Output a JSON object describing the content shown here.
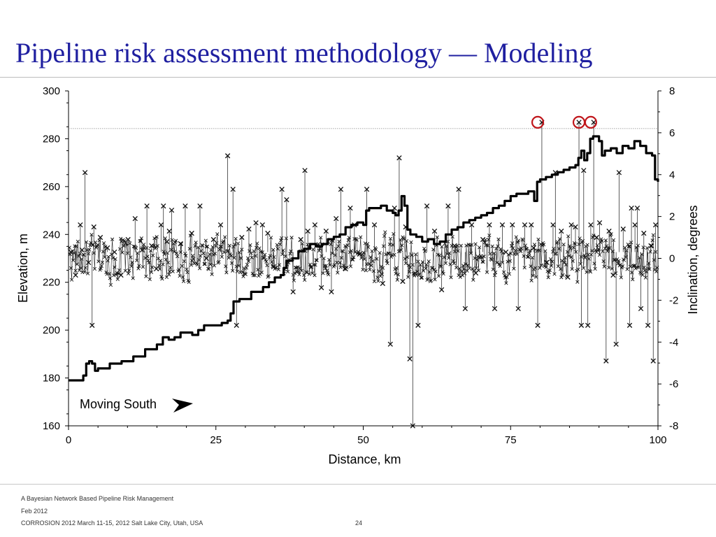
{
  "slide": {
    "title": "Pipeline risk assessment methodology —  Modeling",
    "title_color": "#1f1fa0"
  },
  "footer": {
    "line1": "A Bayesian Network Based Pipeline Risk Management",
    "line2": "Feb 2012",
    "line3": "CORROSION 2012 March 11-15, 2012 Salt Lake City, Utah, USA",
    "page_number": "24"
  },
  "chart_data": {
    "type": "line",
    "xlabel": "Distance, km",
    "ylabel": "Elevation, m",
    "y2label": "Inclination, degrees",
    "xlim": [
      0,
      100
    ],
    "ylim": [
      160,
      300
    ],
    "y2lim": [
      -8,
      8
    ],
    "x_ticks": [
      "0",
      "25",
      "50",
      "75",
      "100"
    ],
    "y_ticks": [
      "160",
      "180",
      "200",
      "220",
      "240",
      "260",
      "280",
      "300"
    ],
    "y2_ticks": [
      "-8",
      "-6",
      "-4",
      "-2",
      "0",
      "2",
      "4",
      "6",
      "8"
    ],
    "grid": false,
    "annotation": "Moving South",
    "threshold_line": {
      "y2": 6.2,
      "style": "dotted"
    },
    "highlight_color": "#c0161b",
    "series": [
      {
        "axis": "left",
        "style": "thick-line",
        "x": [
          0,
          2,
          2.5,
          3,
          3.5,
          4,
          4.5,
          5,
          7,
          9,
          11,
          13,
          15,
          16,
          17,
          18,
          19,
          21,
          22,
          23,
          24,
          25,
          26,
          27,
          27.5,
          28,
          29,
          30,
          31,
          33,
          34,
          35,
          36,
          36.5,
          37,
          38,
          39,
          40,
          41,
          42,
          43,
          44,
          45,
          46,
          47,
          48,
          49,
          50,
          50.5,
          51,
          52,
          53,
          54,
          55,
          55.5,
          56,
          56.5,
          57,
          57.5,
          58,
          59,
          60,
          61,
          62,
          63,
          64,
          65,
          66,
          67,
          68,
          69,
          70,
          71,
          72,
          73,
          74,
          75,
          76,
          77,
          78,
          79,
          79.5,
          80,
          81,
          82,
          83,
          84,
          85,
          86,
          86.5,
          87,
          87.5,
          88,
          88.5,
          89,
          90,
          90.5,
          91,
          92,
          93,
          94,
          95,
          96,
          97,
          98,
          99,
          99.5,
          100
        ],
        "y": [
          179,
          179,
          181,
          186,
          187,
          186,
          183,
          184,
          186,
          187,
          189,
          192,
          194,
          197,
          196,
          197,
          199,
          198,
          200,
          202,
          202,
          202,
          203,
          204,
          207,
          212,
          213,
          213,
          216,
          218,
          220,
          222,
          223,
          226,
          229,
          230,
          233,
          234,
          236,
          235,
          236,
          238,
          239,
          240,
          243,
          244,
          245,
          244,
          250,
          251,
          251,
          252,
          250,
          249,
          248,
          250,
          256,
          252,
          242,
          240,
          239,
          237,
          238,
          236,
          237,
          240,
          242,
          243,
          245,
          246,
          247,
          248,
          249,
          251,
          252,
          254,
          256,
          257,
          257,
          258,
          254,
          262,
          263,
          264,
          265,
          266,
          267,
          268,
          269,
          272,
          275,
          271,
          274,
          280,
          281,
          279,
          273,
          275,
          276,
          274,
          277,
          276,
          279,
          277,
          274,
          273,
          263,
          262
        ]
      },
      {
        "axis": "right",
        "style": "x-markers",
        "x": [
          0.4,
          1.2,
          2.0,
          2.3,
          2.8,
          3.4,
          4.0,
          4.3,
          5.4,
          6.6,
          7.8,
          8.9,
          10.1,
          11.3,
          12.5,
          13.3,
          14.1,
          14.9,
          15.7,
          16.1,
          16.7,
          17.1,
          17.5,
          19.0,
          19.8,
          20.9,
          22.3,
          23.4,
          24.6,
          25.8,
          27.0,
          27.9,
          28.5,
          29.4,
          30.6,
          31.8,
          32.9,
          33.8,
          34.8,
          36.2,
          37.0,
          38.1,
          39.4,
          40.1,
          40.6,
          41.8,
          42.9,
          43.7,
          44.6,
          45.4,
          46.2,
          47.0,
          47.8,
          48.5,
          49.4,
          50.6,
          51.9,
          53.3,
          54.6,
          55.3,
          56.1,
          56.7,
          57.2,
          57.9,
          58.4,
          59.3,
          60.8,
          62.1,
          63.3,
          64.4,
          65.5,
          66.2,
          67.3,
          68.4,
          69.1,
          70.3,
          71.4,
          72.3,
          73.6,
          74.2,
          75.3,
          76.3,
          77.4,
          78.5,
          78.9,
          79.6,
          80.3,
          81.1,
          82.2,
          82.6,
          83.6,
          84.7,
          85.3,
          86.0,
          86.6,
          87.0,
          87.4,
          88.1,
          88.6,
          89.1,
          89.6,
          90.1,
          91.2,
          91.7,
          92.4,
          92.9,
          93.4,
          94.1,
          95.2,
          95.5,
          96.1,
          96.5,
          97.1,
          97.6,
          98.3,
          98.8,
          99.2,
          99.6
        ],
        "y": [
          0.3,
          -0.8,
          1.6,
          0.4,
          4.1,
          -0.2,
          -3.2,
          1.5,
          1.0,
          0.5,
          0.3,
          -0.8,
          0.9,
          1.9,
          0.4,
          2.5,
          0.6,
          -0.5,
          1.6,
          2.5,
          0.8,
          1.3,
          2.3,
          0.7,
          2.5,
          1.2,
          2.5,
          0.0,
          0.9,
          1.6,
          4.9,
          3.3,
          -3.2,
          1.0,
          1.4,
          1.7,
          1.6,
          1.2,
          -0.4,
          3.3,
          2.8,
          -1.6,
          0.9,
          4.2,
          1.3,
          1.6,
          -1.4,
          1.3,
          -1.6,
          1.9,
          3.3,
          -0.5,
          2.4,
          1.6,
          0.2,
          3.3,
          1.6,
          -1.2,
          -4.1,
          2.4,
          4.8,
          -1.1,
          1.5,
          -4.8,
          -8.0,
          -3.2,
          2.5,
          1.3,
          -1.5,
          2.5,
          0.6,
          3.3,
          -2.4,
          1.6,
          -0.7,
          0.9,
          1.6,
          -2.4,
          1.6,
          0.3,
          1.6,
          -2.4,
          1.6,
          1.6,
          0.5,
          -3.2,
          6.5,
          -0.2,
          1.6,
          4.1,
          1.3,
          -0.9,
          1.6,
          1.5,
          6.5,
          -3.2,
          4.2,
          -3.2,
          1.6,
          6.5,
          1.0,
          1.7,
          -4.9,
          1.3,
          -0.8,
          -4.1,
          4.1,
          1.4,
          -3.2,
          2.4,
          1.6,
          2.4,
          -2.4,
          1.2,
          -3.2,
          0.6,
          -4.9,
          1.6
        ],
        "highlighted": [
          {
            "x": 79.6,
            "y": 6.5
          },
          {
            "x": 86.6,
            "y": 6.5
          },
          {
            "x": 88.6,
            "y": 6.5
          }
        ]
      }
    ]
  }
}
